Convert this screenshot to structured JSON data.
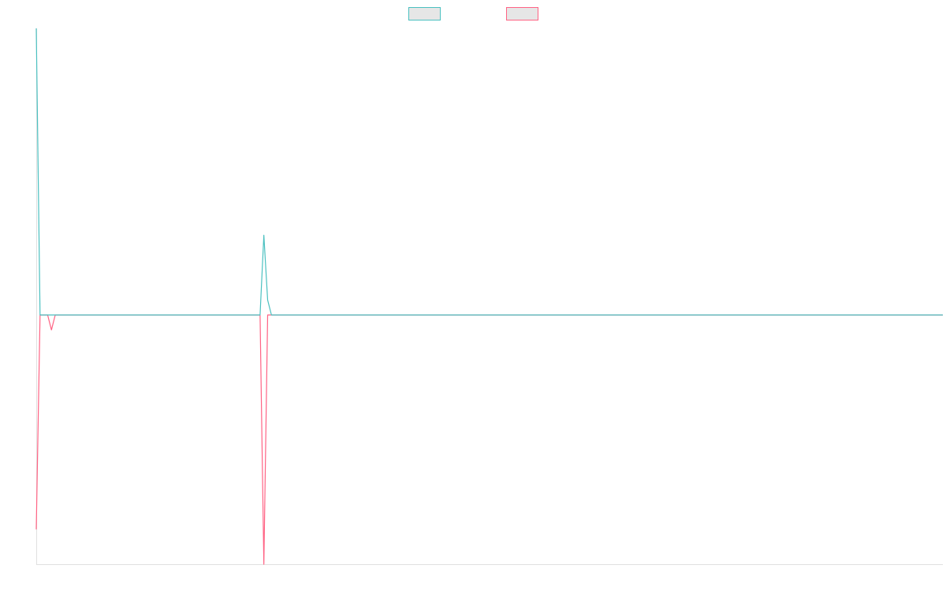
{
  "chart_data": {
    "type": "line",
    "title": "",
    "xlabel": "",
    "ylabel": "",
    "ylim": [
      -1,
      1.15
    ],
    "grid": false,
    "legend": "top-center",
    "series": [
      {
        "name": "",
        "color": "#4bc0c0",
        "values": [
          1.15,
          0,
          0,
          0,
          0,
          0,
          0,
          0,
          0,
          0,
          0,
          0,
          0,
          0,
          0,
          0,
          0,
          0,
          0,
          0,
          0,
          0,
          0,
          0,
          0,
          0,
          0,
          0,
          0,
          0,
          0,
          0,
          0,
          0,
          0,
          0,
          0,
          0,
          0,
          0,
          0,
          0,
          0,
          0,
          0,
          0,
          0,
          0,
          0,
          0,
          0,
          0,
          0,
          0,
          0,
          0,
          0,
          0,
          0,
          0,
          0.32,
          0.06,
          0,
          0,
          0,
          0,
          0,
          0,
          0,
          0,
          0,
          0,
          0,
          0,
          0,
          0,
          0,
          0,
          0,
          0,
          0,
          0,
          0,
          0,
          0,
          0,
          0,
          0,
          0,
          0,
          0,
          0,
          0,
          0,
          0,
          0,
          0,
          0,
          0,
          0,
          0,
          0,
          0,
          0,
          0,
          0,
          0,
          0,
          0,
          0,
          0,
          0,
          0,
          0,
          0,
          0,
          0,
          0,
          0,
          0,
          0,
          0,
          0,
          0,
          0,
          0,
          0,
          0,
          0,
          0,
          0,
          0,
          0,
          0,
          0,
          0,
          0,
          0,
          0,
          0,
          0,
          0,
          0,
          0,
          0,
          0,
          0,
          0,
          0,
          0,
          0,
          0,
          0,
          0,
          0,
          0,
          0,
          0,
          0,
          0,
          0,
          0,
          0,
          0,
          0,
          0,
          0,
          0,
          0,
          0,
          0,
          0,
          0,
          0,
          0,
          0,
          0,
          0,
          0,
          0,
          0,
          0,
          0,
          0,
          0,
          0,
          0,
          0,
          0,
          0,
          0,
          0,
          0,
          0,
          0,
          0,
          0,
          0,
          0,
          0,
          0,
          0,
          0,
          0,
          0,
          0,
          0,
          0,
          0,
          0,
          0,
          0,
          0,
          0,
          0,
          0,
          0,
          0,
          0,
          0,
          0,
          0,
          0,
          0,
          0,
          0,
          0,
          0,
          0,
          0,
          0,
          0,
          0,
          0,
          0,
          0,
          0,
          0,
          0,
          0
        ]
      },
      {
        "name": "",
        "color": "#ff6384",
        "values": [
          -0.86,
          0,
          0,
          0,
          -0.06,
          0,
          0,
          0,
          0,
          0,
          0,
          0,
          0,
          0,
          0,
          0,
          0,
          0,
          0,
          0,
          0,
          0,
          0,
          0,
          0,
          0,
          0,
          0,
          0,
          0,
          0,
          0,
          0,
          0,
          0,
          0,
          0,
          0,
          0,
          0,
          0,
          0,
          0,
          0,
          0,
          0,
          0,
          0,
          0,
          0,
          0,
          0,
          0,
          0,
          0,
          0,
          0,
          0,
          0,
          0,
          -1,
          0,
          0,
          0,
          0,
          0,
          0,
          0,
          0,
          0,
          0,
          0,
          0,
          0,
          0,
          0,
          0,
          0,
          0,
          0,
          0,
          0,
          0,
          0,
          0,
          0,
          0,
          0,
          0,
          0,
          0,
          0,
          0,
          0,
          0,
          0,
          0,
          0,
          0,
          0,
          0,
          0,
          0,
          0,
          0,
          0,
          0,
          0,
          0,
          0,
          0,
          0,
          0,
          0,
          0,
          0,
          0,
          0,
          0,
          0,
          0,
          0,
          0,
          0,
          0,
          0,
          0,
          0,
          0,
          0,
          0,
          0,
          0,
          0,
          0,
          0,
          0,
          0,
          0,
          0,
          0,
          0,
          0,
          0,
          0,
          0,
          0,
          0,
          0,
          0,
          0,
          0,
          0,
          0,
          0,
          0,
          0,
          0,
          0,
          0,
          0,
          0,
          0,
          0,
          0,
          0,
          0,
          0,
          0,
          0,
          0,
          0,
          0,
          0,
          0,
          0,
          0,
          0,
          0,
          0,
          0,
          0,
          0,
          0,
          0,
          0,
          0,
          0,
          0,
          0,
          0,
          0,
          0,
          0,
          0,
          0,
          0,
          0,
          0,
          0,
          0,
          0,
          0,
          0,
          0,
          0,
          0,
          0,
          0,
          0,
          0,
          0,
          0,
          0,
          0,
          0,
          0,
          0,
          0,
          0,
          0,
          0,
          0,
          0,
          0,
          0,
          0,
          0,
          0,
          0,
          0,
          0,
          0,
          0,
          0,
          0,
          0,
          0,
          0,
          0
        ]
      }
    ]
  }
}
